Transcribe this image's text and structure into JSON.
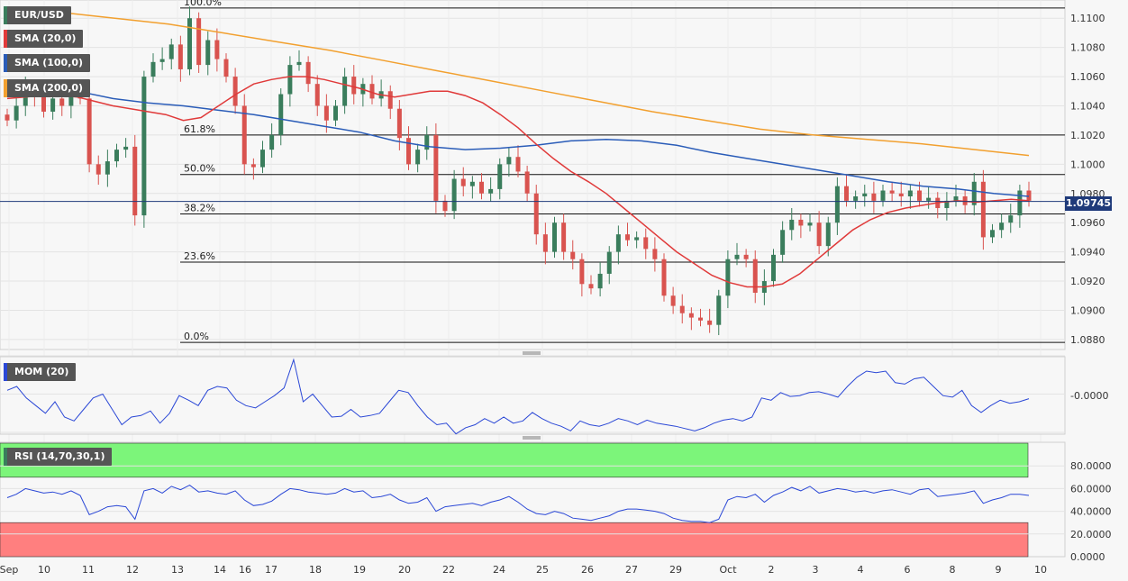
{
  "legends": {
    "pair": "EUR/USD",
    "sma20": "SMA (20,0)",
    "sma100": "SMA (100,0)",
    "sma200": "SMA (200,0)",
    "mom": "MOM (20)",
    "rsi": "RSI (14,70,30,1)"
  },
  "colors": {
    "bull": "#3a7d5c",
    "bear": "#d9534f",
    "sma20": "#e03a3a",
    "sma100": "#2a5cb8",
    "sma200": "#f2a02f",
    "indicator": "#2a47d6",
    "rsi_overbought": "#7cf57a",
    "rsi_oversold": "#ff7f7f"
  },
  "current_price": "1.09745",
  "price_axis": {
    "min": 1.0875,
    "max": 1.111,
    "ticks": [
      "1.1100",
      "1.1080",
      "1.1060",
      "1.1040",
      "1.1020",
      "1.1000",
      "1.0980",
      "1.0960",
      "1.0940",
      "1.0920",
      "1.0900",
      "1.0880"
    ]
  },
  "mom_axis": {
    "ticks": [
      "-0.0000"
    ]
  },
  "rsi_axis": {
    "ticks": [
      "80.0000",
      "60.0000",
      "40.0000",
      "20.0000",
      "0.0000"
    ]
  },
  "x_labels": [
    "Sep",
    "10",
    "11",
    "12",
    "13",
    "14",
    "16",
    "17",
    "18",
    "19",
    "20",
    "22",
    "24",
    "25",
    "26",
    "27",
    "29",
    "Oct",
    "2",
    "3",
    "4",
    "6",
    "8",
    "9",
    "10"
  ],
  "fibonacci": [
    {
      "label": "100.0%",
      "price": 1.1107
    },
    {
      "label": "61.8%",
      "price": 1.102
    },
    {
      "label": "50.0%",
      "price": 1.0993
    },
    {
      "label": "38.2%",
      "price": 1.0966
    },
    {
      "label": "23.6%",
      "price": 1.0933
    },
    {
      "label": "0.0%",
      "price": 1.0878
    }
  ],
  "chart_data": [
    {
      "type": "candlestick",
      "title": "EUR/USD",
      "ylim": [
        1.0875,
        1.111
      ],
      "x_labels": [
        "Sep",
        "10",
        "11",
        "12",
        "13",
        "14",
        "16",
        "17",
        "18",
        "19",
        "20",
        "22",
        "24",
        "25",
        "26",
        "27",
        "29",
        "Oct",
        "2",
        "3",
        "4",
        "6",
        "8",
        "9",
        "10"
      ],
      "close_path": [
        1.103,
        1.104,
        1.1052,
        1.1048,
        1.1036,
        1.1045,
        1.104,
        1.105,
        1.1045,
        1.1,
        1.0993,
        1.1002,
        1.101,
        1.1012,
        1.0965,
        1.106,
        1.107,
        1.1072,
        1.1082,
        1.1065,
        1.11,
        1.1068,
        1.1085,
        1.1072,
        1.106,
        1.104,
        1.1,
        1.0998,
        1.101,
        1.102,
        1.1048,
        1.1068,
        1.107,
        1.1055,
        1.104,
        1.103,
        1.104,
        1.106,
        1.1048,
        1.1055,
        1.1045,
        1.105,
        1.1038,
        1.1018,
        1.1,
        1.101,
        1.102,
        1.0975,
        1.0968,
        1.099,
        1.0985,
        1.0988,
        1.098,
        1.0983,
        1.1,
        1.1005,
        1.0995,
        1.098,
        1.0952,
        1.094,
        1.096,
        1.094,
        1.0935,
        1.0918,
        1.0915,
        1.0925,
        1.094,
        1.0952,
        1.0948,
        1.095,
        1.0942,
        1.0935,
        1.091,
        1.0903,
        1.0898,
        1.0895,
        1.0893,
        1.089,
        1.091,
        1.0935,
        1.0938,
        1.0935,
        1.0912,
        1.092,
        1.0938,
        1.0955,
        1.0962,
        1.0958,
        1.096,
        1.0944,
        1.096,
        1.0985,
        1.0975,
        1.0978,
        1.098,
        1.0975,
        1.0982,
        1.098,
        1.0978,
        1.0982,
        1.0975,
        1.0977,
        1.097,
        1.0975,
        1.0978,
        1.0972,
        1.0988,
        1.095,
        1.0955,
        1.096,
        1.0965,
        1.0982,
        1.0975
      ],
      "series": [
        {
          "name": "SMA (20,0)",
          "values": [
            1.1045,
            1.1046,
            1.1047,
            1.1047,
            1.1046,
            1.1043,
            1.104,
            1.1038,
            1.1036,
            1.1034,
            1.103,
            1.1032,
            1.104,
            1.1048,
            1.1055,
            1.1058,
            1.106,
            1.106,
            1.1058,
            1.1055,
            1.1052,
            1.1048,
            1.1046,
            1.1048,
            1.105,
            1.105,
            1.1047,
            1.1042,
            1.1034,
            1.1025,
            1.1014,
            1.1004,
            1.0995,
            1.0988,
            1.098,
            1.097,
            1.096,
            1.095,
            1.094,
            1.0932,
            1.0924,
            1.0919,
            1.0916,
            1.0916,
            1.0918,
            1.0925,
            1.0935,
            1.0945,
            1.0955,
            1.0962,
            1.0967,
            1.097,
            1.0972,
            1.0974,
            1.0975,
            1.0974,
            1.0975,
            1.0976,
            1.0975
          ]
        },
        {
          "name": "SMA (100,0)",
          "values": [
            1.1057,
            1.1055,
            1.105,
            1.1045,
            1.1042,
            1.104,
            1.1037,
            1.1034,
            1.103,
            1.1026,
            1.1022,
            1.1016,
            1.1012,
            1.101,
            1.1011,
            1.1013,
            1.1016,
            1.1017,
            1.1016,
            1.1013,
            1.1008,
            1.1004,
            1.1,
            1.0996,
            1.0992,
            1.0988,
            1.0985,
            1.0983,
            1.098,
            1.0978
          ]
        },
        {
          "name": "SMA (200,0)",
          "values": [
            1.1107,
            1.1104,
            1.11,
            1.1096,
            1.109,
            1.1084,
            1.1078,
            1.1071,
            1.1064,
            1.1057,
            1.105,
            1.1043,
            1.1036,
            1.103,
            1.1024,
            1.102,
            1.1017,
            1.1014,
            1.101,
            1.1006
          ]
        }
      ]
    },
    {
      "type": "line",
      "title": "MOM (20)",
      "y_tick": "-0.0000",
      "series": [
        {
          "name": "MOM (20)",
          "values": [
            0.55,
            0.6,
            0.45,
            0.35,
            0.25,
            0.4,
            0.2,
            0.15,
            0.3,
            0.45,
            0.5,
            0.3,
            0.1,
            0.2,
            0.22,
            0.28,
            0.12,
            0.25,
            0.48,
            0.42,
            0.35,
            0.55,
            0.6,
            0.58,
            0.42,
            0.35,
            0.32,
            0.4,
            0.48,
            0.58,
            0.95,
            0.4,
            0.5,
            0.35,
            0.2,
            0.21,
            0.3,
            0.2,
            0.22,
            0.25,
            0.4,
            0.55,
            0.52,
            0.35,
            0.2,
            0.1,
            0.12,
            -0.02,
            0.06,
            0.1,
            0.18,
            0.12,
            0.2,
            0.12,
            0.15,
            0.26,
            0.18,
            0.12,
            0.08,
            0.02,
            0.15,
            0.1,
            0.08,
            0.12,
            0.18,
            0.15,
            0.1,
            0.16,
            0.12,
            0.1,
            0.08,
            0.05,
            0.02,
            0.06,
            0.12,
            0.16,
            0.18,
            0.15,
            0.2,
            0.45,
            0.42,
            0.52,
            0.47,
            0.48,
            0.52,
            0.53,
            0.5,
            0.46,
            0.6,
            0.72,
            0.8,
            0.78,
            0.8,
            0.65,
            0.63,
            0.7,
            0.72,
            0.6,
            0.48,
            0.46,
            0.55,
            0.35,
            0.26,
            0.35,
            0.42,
            0.38,
            0.4,
            0.44
          ]
        }
      ]
    },
    {
      "type": "line",
      "title": "RSI (14,70,30,1)",
      "ylim": [
        0,
        100
      ],
      "y_ticks": [
        80,
        60,
        40,
        20,
        0
      ],
      "overbought": 70,
      "oversold": 30,
      "series": [
        {
          "name": "RSI (14,70,30,1)",
          "values": [
            52,
            55,
            60,
            58,
            56,
            57,
            55,
            58,
            54,
            37,
            40,
            44,
            45,
            44,
            33,
            58,
            60,
            56,
            62,
            59,
            63,
            57,
            58,
            56,
            55,
            58,
            50,
            45,
            46,
            49,
            55,
            60,
            59,
            57,
            56,
            55,
            56,
            60,
            57,
            58,
            52,
            53,
            55,
            50,
            47,
            48,
            52,
            40,
            44,
            45,
            46,
            47,
            45,
            48,
            50,
            53,
            48,
            42,
            38,
            37,
            40,
            38,
            34,
            33,
            32,
            34,
            36,
            40,
            42,
            42,
            41,
            40,
            38,
            34,
            32,
            31,
            31,
            30,
            33,
            50,
            53,
            52,
            55,
            48,
            54,
            57,
            61,
            58,
            62,
            56,
            58,
            60,
            59,
            57,
            58,
            56,
            58,
            59,
            57,
            55,
            59,
            60,
            53,
            54,
            55,
            56,
            58,
            47,
            50,
            52,
            55,
            55,
            54
          ]
        }
      ]
    }
  ]
}
